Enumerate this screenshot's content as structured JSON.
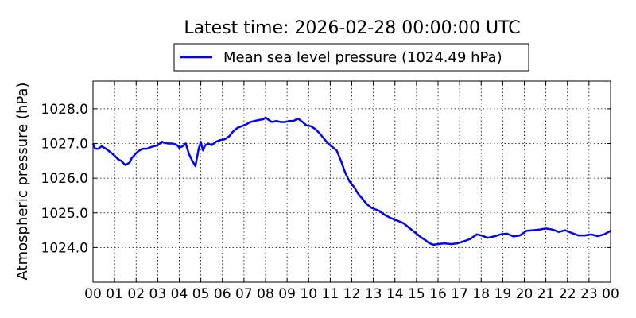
{
  "chart_data": {
    "type": "line",
    "title": "Latest time: 2026-02-28 00:00:00 UTC",
    "xlabel": "",
    "ylabel": "Atmospheric pressure (hPa)",
    "xlim": [
      0,
      24
    ],
    "ylim": [
      1023.0,
      1028.8
    ],
    "x_ticks": [
      "00",
      "01",
      "02",
      "03",
      "04",
      "05",
      "06",
      "07",
      "08",
      "09",
      "10",
      "11",
      "12",
      "13",
      "14",
      "15",
      "16",
      "17",
      "18",
      "19",
      "20",
      "21",
      "22",
      "23",
      "00"
    ],
    "y_ticks": [
      "1024.0",
      "1025.0",
      "1026.0",
      "1027.0",
      "1028.0"
    ],
    "y_tick_values": [
      1024.0,
      1025.0,
      1026.0,
      1027.0,
      1028.0
    ],
    "grid": true,
    "legend_position": "top-center",
    "series": [
      {
        "name": "Mean sea level pressure (1024.49 hPa)",
        "color": "#0000ff",
        "x": [
          0.0,
          0.1,
          0.25,
          0.4,
          0.6,
          0.8,
          1.0,
          1.15,
          1.3,
          1.5,
          1.7,
          1.8,
          1.9,
          2.0,
          2.1,
          2.3,
          2.5,
          2.7,
          3.0,
          3.2,
          3.3,
          3.5,
          3.7,
          3.9,
          4.0,
          4.15,
          4.3,
          4.45,
          4.6,
          4.75,
          4.9,
          5.0,
          5.1,
          5.2,
          5.35,
          5.5,
          5.7,
          5.9,
          6.1,
          6.3,
          6.5,
          6.7,
          6.9,
          7.1,
          7.3,
          7.5,
          7.7,
          7.9,
          8.0,
          8.15,
          8.3,
          8.5,
          8.7,
          8.9,
          9.1,
          9.3,
          9.5,
          9.6,
          9.75,
          9.9,
          10.1,
          10.3,
          10.5,
          10.7,
          10.9,
          11.1,
          11.3,
          11.5,
          11.7,
          11.9,
          12.1,
          12.3,
          12.5,
          12.7,
          12.9,
          13.1,
          13.3,
          13.5,
          13.8,
          14.1,
          14.4,
          14.7,
          15.0,
          15.2,
          15.4,
          15.6,
          15.8,
          16.0,
          16.3,
          16.6,
          16.9,
          17.2,
          17.5,
          17.8,
          18.0,
          18.3,
          18.6,
          18.9,
          19.2,
          19.5,
          19.8,
          20.1,
          20.4,
          20.7,
          21.0,
          21.3,
          21.6,
          21.9,
          22.2,
          22.5,
          22.8,
          23.1,
          23.4,
          23.7,
          24.0
        ],
        "values": [
          1027.0,
          1026.85,
          1026.85,
          1026.92,
          1026.85,
          1026.75,
          1026.65,
          1026.55,
          1026.5,
          1026.38,
          1026.45,
          1026.58,
          1026.65,
          1026.72,
          1026.78,
          1026.85,
          1026.85,
          1026.9,
          1026.95,
          1027.05,
          1027.02,
          1027.0,
          1027.0,
          1026.95,
          1026.88,
          1026.92,
          1027.0,
          1026.7,
          1026.5,
          1026.35,
          1026.85,
          1027.05,
          1026.8,
          1026.95,
          1027.0,
          1026.95,
          1027.05,
          1027.1,
          1027.12,
          1027.2,
          1027.35,
          1027.45,
          1027.5,
          1027.55,
          1027.62,
          1027.65,
          1027.68,
          1027.7,
          1027.75,
          1027.68,
          1027.62,
          1027.65,
          1027.62,
          1027.62,
          1027.65,
          1027.65,
          1027.72,
          1027.68,
          1027.6,
          1027.52,
          1027.5,
          1027.42,
          1027.3,
          1027.15,
          1027.0,
          1026.9,
          1026.8,
          1026.5,
          1026.15,
          1025.9,
          1025.75,
          1025.55,
          1025.4,
          1025.25,
          1025.15,
          1025.1,
          1025.05,
          1024.95,
          1024.85,
          1024.78,
          1024.7,
          1024.55,
          1024.4,
          1024.3,
          1024.22,
          1024.12,
          1024.08,
          1024.1,
          1024.12,
          1024.1,
          1024.12,
          1024.18,
          1024.25,
          1024.38,
          1024.35,
          1024.28,
          1024.32,
          1024.38,
          1024.4,
          1024.32,
          1024.35,
          1024.48,
          1024.5,
          1024.52,
          1024.55,
          1024.52,
          1024.45,
          1024.5,
          1024.42,
          1024.35,
          1024.35,
          1024.38,
          1024.33,
          1024.38,
          1024.48
        ]
      }
    ]
  }
}
